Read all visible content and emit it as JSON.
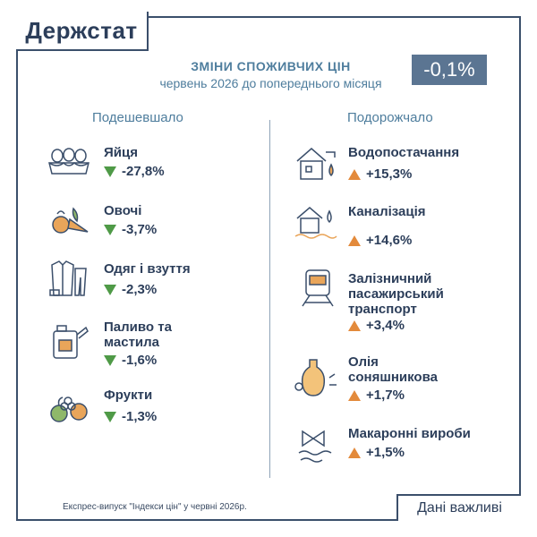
{
  "logo": "Держстат",
  "header": {
    "title": "ЗМІНИ СПОЖИВЧИХ ЦІН",
    "subtitle": "червень 2026 до попереднього місяця",
    "total": "-0,1%"
  },
  "columns": {
    "cheaper": "Подешевшало",
    "pricier": "Подорожчало"
  },
  "chart_data": {
    "type": "table",
    "title": "ЗМІНИ СПОЖИВЧИХ ЦІН",
    "subtitle": "червень 2026 до попереднього місяця",
    "total_change": -0.1,
    "decreased": [
      {
        "name": "Яйця",
        "label": "-27,8%",
        "value": -27.8,
        "icon": "eggs-icon"
      },
      {
        "name": "Овочі",
        "label": "-3,7%",
        "value": -3.7,
        "icon": "vegetables-icon"
      },
      {
        "name": "Одяг і взуття",
        "label": "-2,3%",
        "value": -2.3,
        "icon": "clothing-icon"
      },
      {
        "name": "Паливо та\nмастила",
        "label": "-1,6%",
        "value": -1.6,
        "icon": "fuel-canister-icon"
      },
      {
        "name": "Фрукти",
        "label": "-1,3%",
        "value": -1.3,
        "icon": "fruits-icon"
      }
    ],
    "increased": [
      {
        "name": "Водопостачання",
        "label": "+15,3%",
        "value": 15.3,
        "icon": "water-supply-icon"
      },
      {
        "name": "Каналізація",
        "label": "+14,6%",
        "value": 14.6,
        "icon": "sewerage-icon"
      },
      {
        "name": "Залізничний\nпасажирський\nтранспорт",
        "label": "+3,4%",
        "value": 3.4,
        "icon": "train-icon"
      },
      {
        "name": "Олія\nсоняшникова",
        "label": "+1,7%",
        "value": 1.7,
        "icon": "oil-bottle-icon"
      },
      {
        "name": "Макаронні вироби",
        "label": "+1,5%",
        "value": 1.5,
        "icon": "pasta-icon"
      }
    ]
  },
  "footer": {
    "note": "Експрес-випуск \"Індекси цін\" у червні 2026р.",
    "important": "Дані важливі"
  },
  "colors": {
    "frame": "#3b4f6b",
    "accent": "#4e7d9d",
    "badge": "#5b7592",
    "down": "#4f9a47",
    "up": "#e38a3b"
  }
}
